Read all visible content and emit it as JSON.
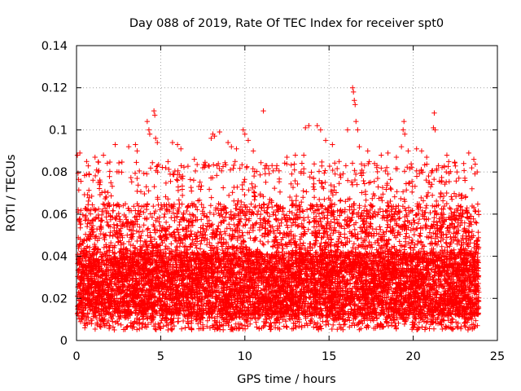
{
  "chart_data": {
    "type": "scatter",
    "title": "Day 088 of 2019, Rate Of TEC Index for receiver spt0",
    "xlabel": "GPS time / hours",
    "ylabel": "ROTI / TECUs",
    "xlim": [
      0,
      25
    ],
    "ylim": [
      0,
      0.14
    ],
    "x_ticks": [
      0,
      5,
      10,
      15,
      20,
      25
    ],
    "y_ticks": [
      0,
      0.02,
      0.04,
      0.06,
      0.08,
      0.1,
      0.12,
      0.14
    ],
    "x_tick_labels": [
      "0",
      "5",
      "10",
      "15",
      "20",
      "25"
    ],
    "y_tick_labels": [
      "0",
      "0.02",
      "0.04",
      "0.06",
      "0.08",
      "0.1",
      "0.12",
      "0.14"
    ],
    "grid": true,
    "marker": "+",
    "color": "#ff0000",
    "series": [
      {
        "name": "ROTI",
        "description_values": "dense plus-marker cloud, mostly 0.01-0.06 TECU/s, x range 0 to 24 h",
        "points": [
          [
            0.05,
            0.088
          ],
          [
            0.2,
            0.089
          ],
          [
            0.6,
            0.085
          ],
          [
            1.1,
            0.087
          ],
          [
            1.6,
            0.088
          ],
          [
            2.3,
            0.093
          ],
          [
            3.1,
            0.092
          ],
          [
            3.5,
            0.093
          ],
          [
            3.6,
            0.09
          ],
          [
            4.2,
            0.104
          ],
          [
            4.3,
            0.1
          ],
          [
            4.35,
            0.098
          ],
          [
            4.6,
            0.109
          ],
          [
            4.65,
            0.107
          ],
          [
            4.7,
            0.096
          ],
          [
            4.8,
            0.094
          ],
          [
            5.3,
            0.082
          ],
          [
            5.7,
            0.094
          ],
          [
            6.0,
            0.093
          ],
          [
            6.2,
            0.091
          ],
          [
            7.0,
            0.086
          ],
          [
            7.5,
            0.082
          ],
          [
            8.0,
            0.096
          ],
          [
            8.1,
            0.098
          ],
          [
            8.2,
            0.097
          ],
          [
            8.5,
            0.099
          ],
          [
            9.0,
            0.094
          ],
          [
            9.2,
            0.092
          ],
          [
            9.5,
            0.091
          ],
          [
            9.9,
            0.1
          ],
          [
            10.0,
            0.098
          ],
          [
            10.2,
            0.095
          ],
          [
            10.5,
            0.09
          ],
          [
            11.1,
            0.109
          ],
          [
            11.3,
            0.083
          ],
          [
            11.9,
            0.083
          ],
          [
            12.5,
            0.087
          ],
          [
            13.0,
            0.088
          ],
          [
            13.5,
            0.088
          ],
          [
            13.6,
            0.101
          ],
          [
            13.8,
            0.102
          ],
          [
            14.3,
            0.102
          ],
          [
            14.5,
            0.1
          ],
          [
            14.8,
            0.095
          ],
          [
            15.2,
            0.093
          ],
          [
            15.6,
            0.085
          ],
          [
            16.0,
            0.083
          ],
          [
            16.1,
            0.1
          ],
          [
            16.4,
            0.12
          ],
          [
            16.45,
            0.118
          ],
          [
            16.5,
            0.114
          ],
          [
            16.55,
            0.112
          ],
          [
            16.6,
            0.104
          ],
          [
            16.7,
            0.1
          ],
          [
            16.8,
            0.092
          ],
          [
            17.3,
            0.09
          ],
          [
            17.7,
            0.084
          ],
          [
            18.1,
            0.088
          ],
          [
            18.5,
            0.089
          ],
          [
            19.0,
            0.087
          ],
          [
            19.3,
            0.092
          ],
          [
            19.4,
            0.1
          ],
          [
            19.45,
            0.104
          ],
          [
            19.5,
            0.098
          ],
          [
            19.7,
            0.09
          ],
          [
            20.2,
            0.091
          ],
          [
            20.5,
            0.09
          ],
          [
            20.8,
            0.087
          ],
          [
            21.2,
            0.101
          ],
          [
            21.25,
            0.108
          ],
          [
            21.3,
            0.1
          ],
          [
            21.5,
            0.083
          ],
          [
            22.0,
            0.088
          ],
          [
            22.6,
            0.08
          ],
          [
            23.0,
            0.084
          ],
          [
            23.3,
            0.089
          ],
          [
            23.6,
            0.086
          ],
          [
            23.8,
            0.08
          ]
        ]
      }
    ]
  }
}
